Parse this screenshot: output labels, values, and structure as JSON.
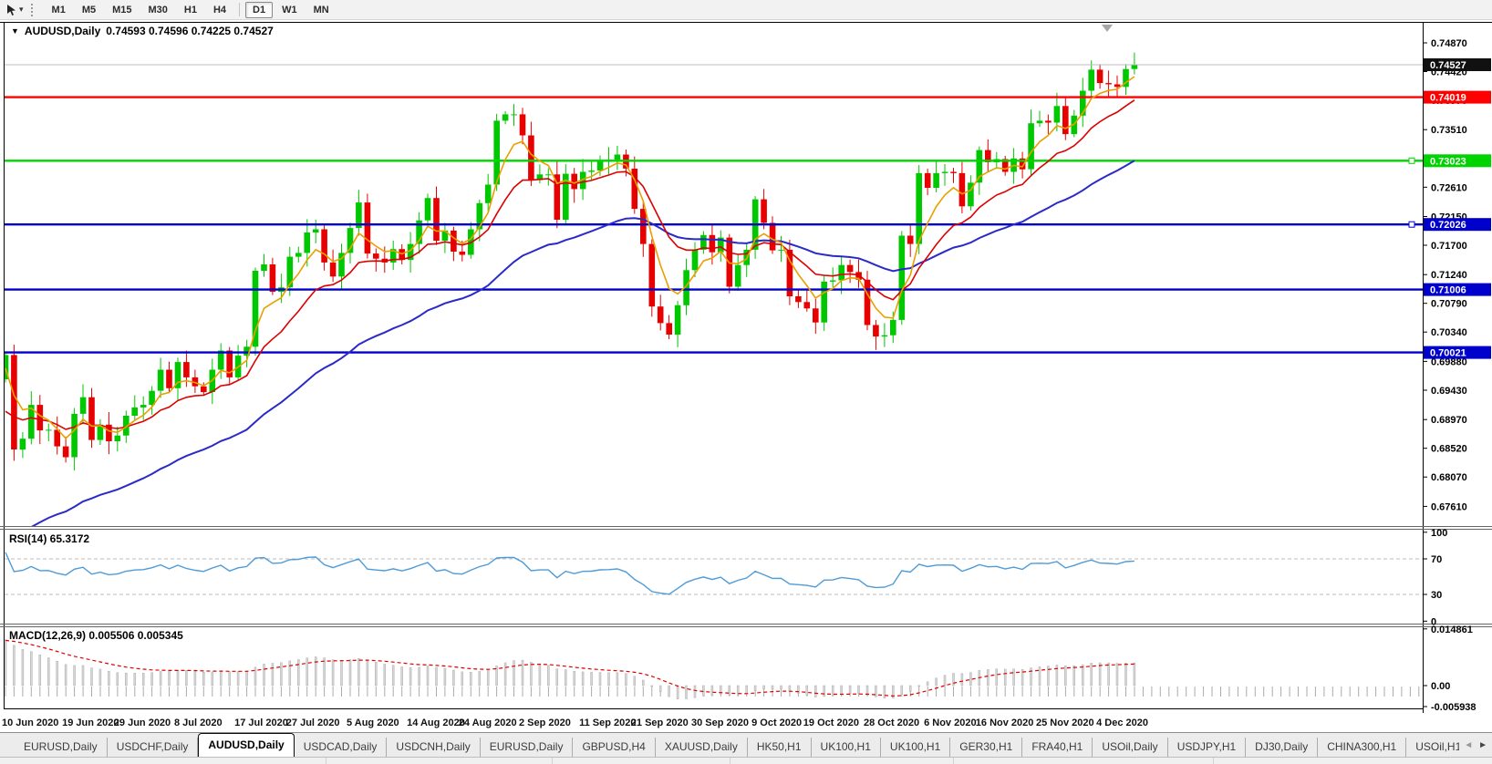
{
  "toolbar": {
    "timeframes": [
      "M1",
      "M5",
      "M15",
      "M30",
      "H1",
      "H4",
      "D1",
      "W1",
      "MN"
    ],
    "active_timeframe": "D1"
  },
  "chart": {
    "symbol_title": "AUDUSD,Daily",
    "ohlc_text": "0.74593 0.74596 0.74225 0.74527",
    "collapse_caret": "▼"
  },
  "price_axis": {
    "current_price": "0.74527",
    "ticks": [
      "0.74870",
      "0.74420",
      "0.73970",
      "0.73510",
      "0.73060",
      "0.72610",
      "0.72150",
      "0.71700",
      "0.71240",
      "0.70790",
      "0.70340",
      "0.69880",
      "0.69430",
      "0.68970",
      "0.68520",
      "0.68070",
      "0.67610"
    ]
  },
  "hlines": [
    {
      "price": 0.74019,
      "label": "0.74019",
      "color": "#FF0000",
      "handle": false
    },
    {
      "price": 0.73023,
      "label": "0.73023",
      "color": "#00D400",
      "handle": true
    },
    {
      "price": 0.72026,
      "label": "0.72026",
      "color": "#0000CD",
      "handle": true
    },
    {
      "price": 0.71006,
      "label": "0.71006",
      "color": "#0000CD",
      "handle": false
    },
    {
      "price": 0.70021,
      "label": "0.70021",
      "color": "#0000CD",
      "handle": false
    }
  ],
  "rsi_panel": {
    "label": "RSI(14) 65.3172",
    "line_color": "#4E9BD8",
    "axis_ticks": [
      {
        "value": 100,
        "label": "100",
        "dashed": false
      },
      {
        "value": 70,
        "label": "70",
        "dashed": true
      },
      {
        "value": 30,
        "label": "30",
        "dashed": true
      },
      {
        "value": 0,
        "label": "0",
        "dashed": false
      }
    ]
  },
  "macd_panel": {
    "label": "MACD(12,26,9) 0.005506 0.005345",
    "histogram_color": "#D6D6D6",
    "histogram_stroke": "#ADADAD",
    "signal_color": "#E00000",
    "axis_ticks": [
      {
        "value": 0.014861,
        "label": "0.014861"
      },
      {
        "value": 0,
        "label": "0.00"
      },
      {
        "value": -0.005938,
        "label": "-0.005938"
      }
    ]
  },
  "chart_data": {
    "type": "candlestick",
    "symbol": "AUDUSD",
    "timeframe": "Daily",
    "title": "AUDUSD,Daily 0.74593 0.74596 0.74225 0.74527",
    "open": "0.74593",
    "high": "0.74596",
    "low": "0.74225",
    "close": "0.74527",
    "y_axis_range": [
      0.6755,
      0.7495
    ],
    "candle_up_color": "#00C800",
    "candle_down_color": "#E60000",
    "first_open": 0.696,
    "x_labels": [
      {
        "label": "10 Jun 2020",
        "bar": 0
      },
      {
        "label": "19 Jun 2020",
        "bar": 7
      },
      {
        "label": "29 Jun 2020",
        "bar": 13
      },
      {
        "label": "8 Jul 2020",
        "bar": 20
      },
      {
        "label": "17 Jul 2020",
        "bar": 27
      },
      {
        "label": "27 Jul 2020",
        "bar": 33
      },
      {
        "label": "5 Aug 2020",
        "bar": 40
      },
      {
        "label": "14 Aug 2020",
        "bar": 47
      },
      {
        "label": "24 Aug 2020",
        "bar": 53
      },
      {
        "label": "2 Sep 2020",
        "bar": 60
      },
      {
        "label": "11 Sep 2020",
        "bar": 67
      },
      {
        "label": "21 Sep 2020",
        "bar": 73
      },
      {
        "label": "30 Sep 2020",
        "bar": 80
      },
      {
        "label": "9 Oct 2020",
        "bar": 87
      },
      {
        "label": "19 Oct 2020",
        "bar": 93
      },
      {
        "label": "28 Oct 2020",
        "bar": 100
      },
      {
        "label": "6 Nov 2020",
        "bar": 107
      },
      {
        "label": "16 Nov 2020",
        "bar": 113
      },
      {
        "label": "25 Nov 2020",
        "bar": 120
      },
      {
        "label": "4 Dec 2020",
        "bar": 127
      }
    ],
    "closes": [
      0.6998,
      0.685,
      0.6867,
      0.692,
      0.688,
      0.6881,
      0.6855,
      0.6838,
      0.6906,
      0.6932,
      0.6865,
      0.6889,
      0.6863,
      0.6872,
      0.6903,
      0.6916,
      0.692,
      0.6942,
      0.6975,
      0.6946,
      0.6987,
      0.6963,
      0.6949,
      0.694,
      0.6975,
      0.7005,
      0.6963,
      0.6997,
      0.7011,
      0.713,
      0.714,
      0.7097,
      0.7104,
      0.7152,
      0.7158,
      0.719,
      0.7195,
      0.7143,
      0.7121,
      0.7158,
      0.7197,
      0.7237,
      0.7157,
      0.7149,
      0.7143,
      0.7164,
      0.7147,
      0.7172,
      0.7209,
      0.7244,
      0.7177,
      0.7193,
      0.716,
      0.7155,
      0.7195,
      0.7236,
      0.7265,
      0.7365,
      0.7375,
      0.7375,
      0.7342,
      0.7272,
      0.7281,
      0.7281,
      0.721,
      0.7282,
      0.7258,
      0.7285,
      0.7287,
      0.7302,
      0.7304,
      0.7312,
      0.729,
      0.7227,
      0.7172,
      0.7074,
      0.7048,
      0.703,
      0.7076,
      0.7131,
      0.7163,
      0.7186,
      0.7159,
      0.7182,
      0.7105,
      0.7139,
      0.7163,
      0.7242,
      0.7205,
      0.7162,
      0.7163,
      0.709,
      0.7081,
      0.7071,
      0.7049,
      0.7113,
      0.7115,
      0.7139,
      0.7128,
      0.7116,
      0.7045,
      0.7027,
      0.7029,
      0.7053,
      0.7185,
      0.7172,
      0.7283,
      0.726,
      0.7283,
      0.7285,
      0.7283,
      0.7231,
      0.7268,
      0.7319,
      0.73,
      0.7305,
      0.7285,
      0.7306,
      0.7289,
      0.7361,
      0.7365,
      0.7362,
      0.7388,
      0.7344,
      0.7373,
      0.7412,
      0.7445,
      0.7424,
      0.7422,
      0.7418,
      0.7446,
      0.74527
    ],
    "moving_averages": [
      {
        "name": "fast",
        "period": 5,
        "color": "#E8A000"
      },
      {
        "name": "medium",
        "period": 13,
        "color": "#DC0000"
      },
      {
        "name": "slow",
        "period": 40,
        "color": "#2A2AC8"
      }
    ],
    "support_resistance": [
      0.74019,
      0.73023,
      0.72026,
      0.71006,
      0.70021
    ],
    "indicators": [
      {
        "name": "RSI",
        "period": 14,
        "value": 65.3172,
        "levels": [
          100,
          70,
          30,
          0
        ]
      },
      {
        "name": "MACD",
        "fast": 12,
        "slow": 26,
        "signal": 9,
        "value": 0.005506,
        "signal_value": 0.005345,
        "scale_max": 0.014861,
        "scale_min": -0.005938
      }
    ]
  },
  "tabs": {
    "items": [
      {
        "label": "EURUSD,Daily",
        "active": false
      },
      {
        "label": "USDCHF,Daily",
        "active": false
      },
      {
        "label": "AUDUSD,Daily",
        "active": true
      },
      {
        "label": "USDCAD,Daily",
        "active": false
      },
      {
        "label": "USDCNH,Daily",
        "active": false
      },
      {
        "label": "EURUSD,Daily",
        "active": false
      },
      {
        "label": "GBPUSD,H4",
        "active": false
      },
      {
        "label": "XAUUSD,Daily",
        "active": false
      },
      {
        "label": "HK50,H1",
        "active": false
      },
      {
        "label": "UK100,H1",
        "active": false
      },
      {
        "label": "UK100,H1",
        "active": false
      },
      {
        "label": "GER30,H1",
        "active": false
      },
      {
        "label": "FRA40,H1",
        "active": false
      },
      {
        "label": "USOil,Daily",
        "active": false
      },
      {
        "label": "USDJPY,H1",
        "active": false
      },
      {
        "label": "DJ30,Daily",
        "active": false
      },
      {
        "label": "CHINA300,H1",
        "active": false
      },
      {
        "label": "USOil,H1",
        "active": false
      }
    ],
    "scroll_left": "◄",
    "scroll_right": "►"
  }
}
